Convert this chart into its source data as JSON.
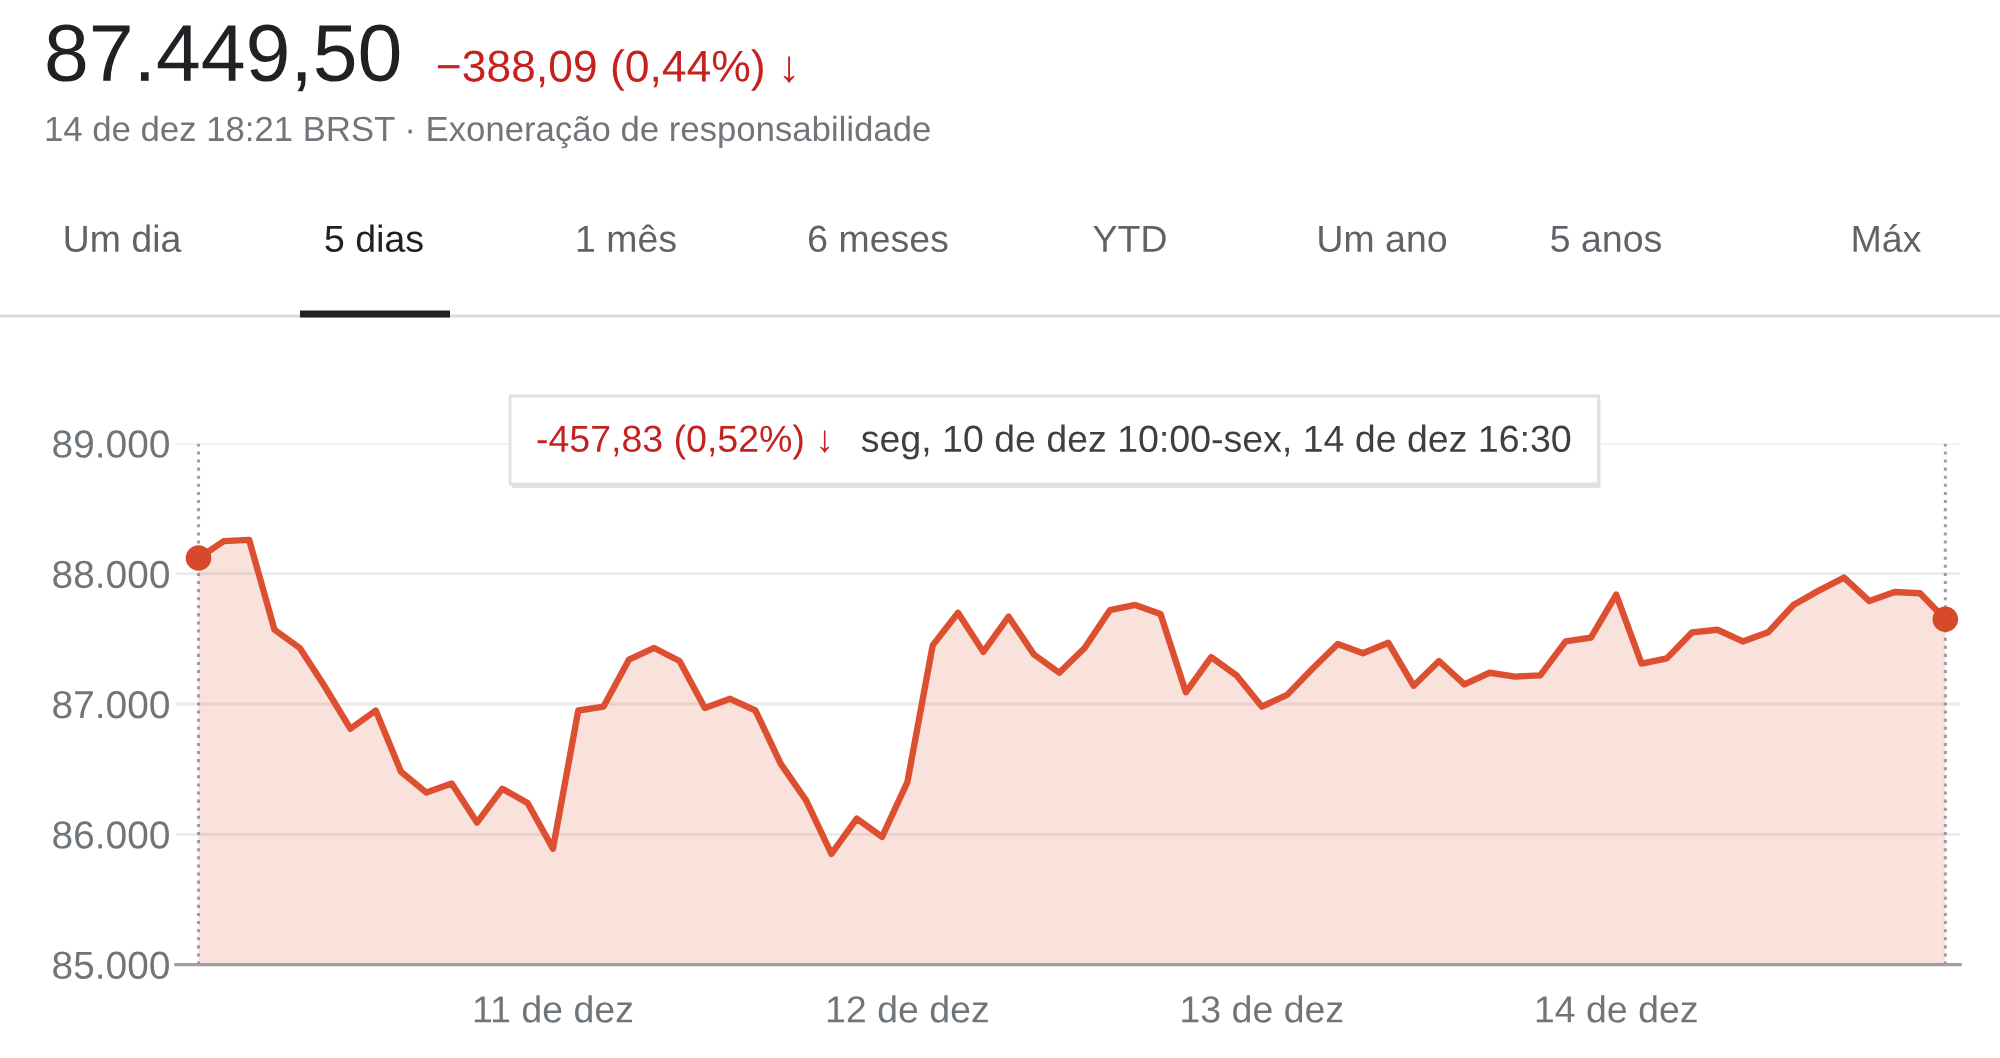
{
  "chart_data": {
    "type": "area",
    "title": "87.449,50",
    "subtitle": "14 de dez 18:21 BRST · Exoneração de responsabilidade",
    "annotations": [
      "−388,09 (0,44%) ↓",
      "Um dia",
      "5 dias",
      "1 mês",
      "6 meses",
      "YTD",
      "Um ano",
      "5 anos",
      "Máx",
      "-457,83 (0,52%) ↓",
      "seg, 10 de dez 10:00-sex, 14 de dez 16:30"
    ],
    "categories": [
      null,
      null,
      null,
      null,
      null,
      null,
      null,
      null,
      null,
      null,
      null,
      null,
      null,
      null,
      "11 de dez",
      null,
      null,
      null,
      null,
      null,
      null,
      null,
      null,
      null,
      null,
      null,
      null,
      null,
      "12 de dez",
      null,
      null,
      null,
      null,
      null,
      null,
      null,
      null,
      null,
      null,
      null,
      null,
      null,
      "13 de dez",
      null,
      null,
      null,
      null,
      null,
      null,
      null,
      null,
      null,
      null,
      null,
      null,
      null,
      "14 de dez",
      null,
      null,
      null,
      null,
      null,
      null,
      null,
      null,
      null,
      null,
      null,
      null,
      null
    ],
    "series": [
      {
        "color": "#dc5031",
        "values": [
          88120,
          88250,
          88260,
          87570,
          87430,
          87130,
          86810,
          86950,
          86480,
          86320,
          86390,
          86090,
          86350,
          86240,
          85890,
          86950,
          86980,
          87340,
          87430,
          87330,
          86970,
          87040,
          86950,
          86540,
          86260,
          85850,
          86120,
          85980,
          86400,
          87450,
          87700,
          87400,
          87670,
          87380,
          87240,
          87430,
          87720,
          87760,
          87690,
          87090,
          87360,
          87220,
          86980,
          87070,
          87270,
          87460,
          87390,
          87470,
          87140,
          87330,
          87150,
          87240,
          87210,
          87220,
          87480,
          87510,
          87840,
          87310,
          87350,
          87550,
          87570,
          87480,
          87550,
          87760,
          87870,
          87970,
          87790,
          87860,
          87850,
          87650
        ]
      },
      {
        "type": "scatter",
        "color": "#d6492b",
        "marker": "circle",
        "values": [
          88120,
          null,
          null,
          null,
          null,
          null,
          null,
          null,
          null,
          null,
          null,
          null,
          null,
          null,
          null,
          null,
          null,
          null,
          null,
          null,
          null,
          null,
          null,
          null,
          null,
          null,
          null,
          null,
          null,
          null,
          null,
          null,
          null,
          null,
          null,
          null,
          null,
          null,
          null,
          null,
          null,
          null,
          null,
          null,
          null,
          null,
          null,
          null,
          null,
          null,
          null,
          null,
          null,
          null,
          null,
          null,
          null,
          null,
          null,
          null,
          null,
          null,
          null,
          null,
          null,
          null,
          null,
          null,
          null,
          87650
        ]
      }
    ],
    "ylim": [
      85000,
      89000
    ],
    "yticks": [
      {
        "value": 85000,
        "label": "85.000"
      },
      {
        "value": 86000,
        "label": "86.000"
      },
      {
        "value": 87000,
        "label": "87.000"
      },
      {
        "value": 88000,
        "label": "88.000"
      },
      {
        "value": 89000,
        "label": "89.000"
      }
    ],
    "grid": "y"
  }
}
